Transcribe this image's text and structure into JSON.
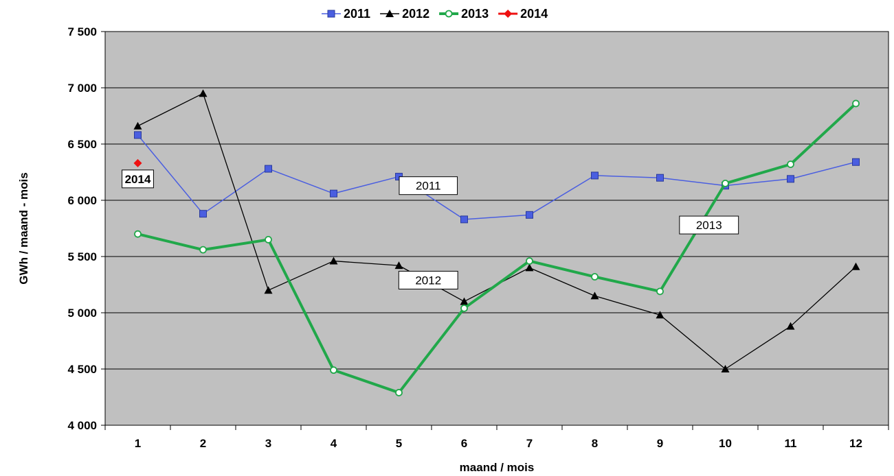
{
  "chart_data": {
    "type": "line",
    "xlabel": "maand / mois",
    "ylabel": "GWh / maand - mois",
    "categories": [
      "1",
      "2",
      "3",
      "4",
      "5",
      "6",
      "7",
      "8",
      "9",
      "10",
      "11",
      "12"
    ],
    "ylim": [
      4000,
      7500
    ],
    "yticks": [
      4000,
      4500,
      5000,
      5500,
      6000,
      6500,
      7000,
      7500
    ],
    "ytick_labels": [
      "4 000",
      "4 500",
      "5 000",
      "5 500",
      "6 000",
      "6 500",
      "7 000",
      "7 500"
    ],
    "grid": "horizontal",
    "legend_position": "top-center",
    "series": [
      {
        "name": "2011",
        "color": "#4a5ee0",
        "marker": "square",
        "values": [
          6580,
          5880,
          6280,
          6060,
          6210,
          5830,
          5870,
          6220,
          6200,
          6130,
          6190,
          6340
        ]
      },
      {
        "name": "2012",
        "color": "#000000",
        "marker": "triangle",
        "values": [
          6660,
          6950,
          5200,
          5460,
          5420,
          5100,
          5400,
          5150,
          4980,
          4500,
          4880,
          5410
        ]
      },
      {
        "name": "2013",
        "color": "#21a84a",
        "marker": "circle",
        "values": [
          5700,
          5560,
          5650,
          4490,
          4290,
          5040,
          5460,
          5320,
          5190,
          6150,
          6320,
          6860
        ]
      },
      {
        "name": "2014",
        "color": "#ee1111",
        "marker": "diamond",
        "values": [
          6330,
          null,
          null,
          null,
          null,
          null,
          null,
          null,
          null,
          null,
          null,
          null
        ]
      }
    ],
    "annotations": [
      {
        "text": "2014",
        "x": 1,
        "y": 6190,
        "bold": true
      },
      {
        "text": "2011",
        "x": 5.45,
        "y": 6130,
        "bold": false
      },
      {
        "text": "2012",
        "x": 5.45,
        "y": 5290,
        "bold": false
      },
      {
        "text": "2013",
        "x": 9.75,
        "y": 5780,
        "bold": false
      }
    ]
  }
}
